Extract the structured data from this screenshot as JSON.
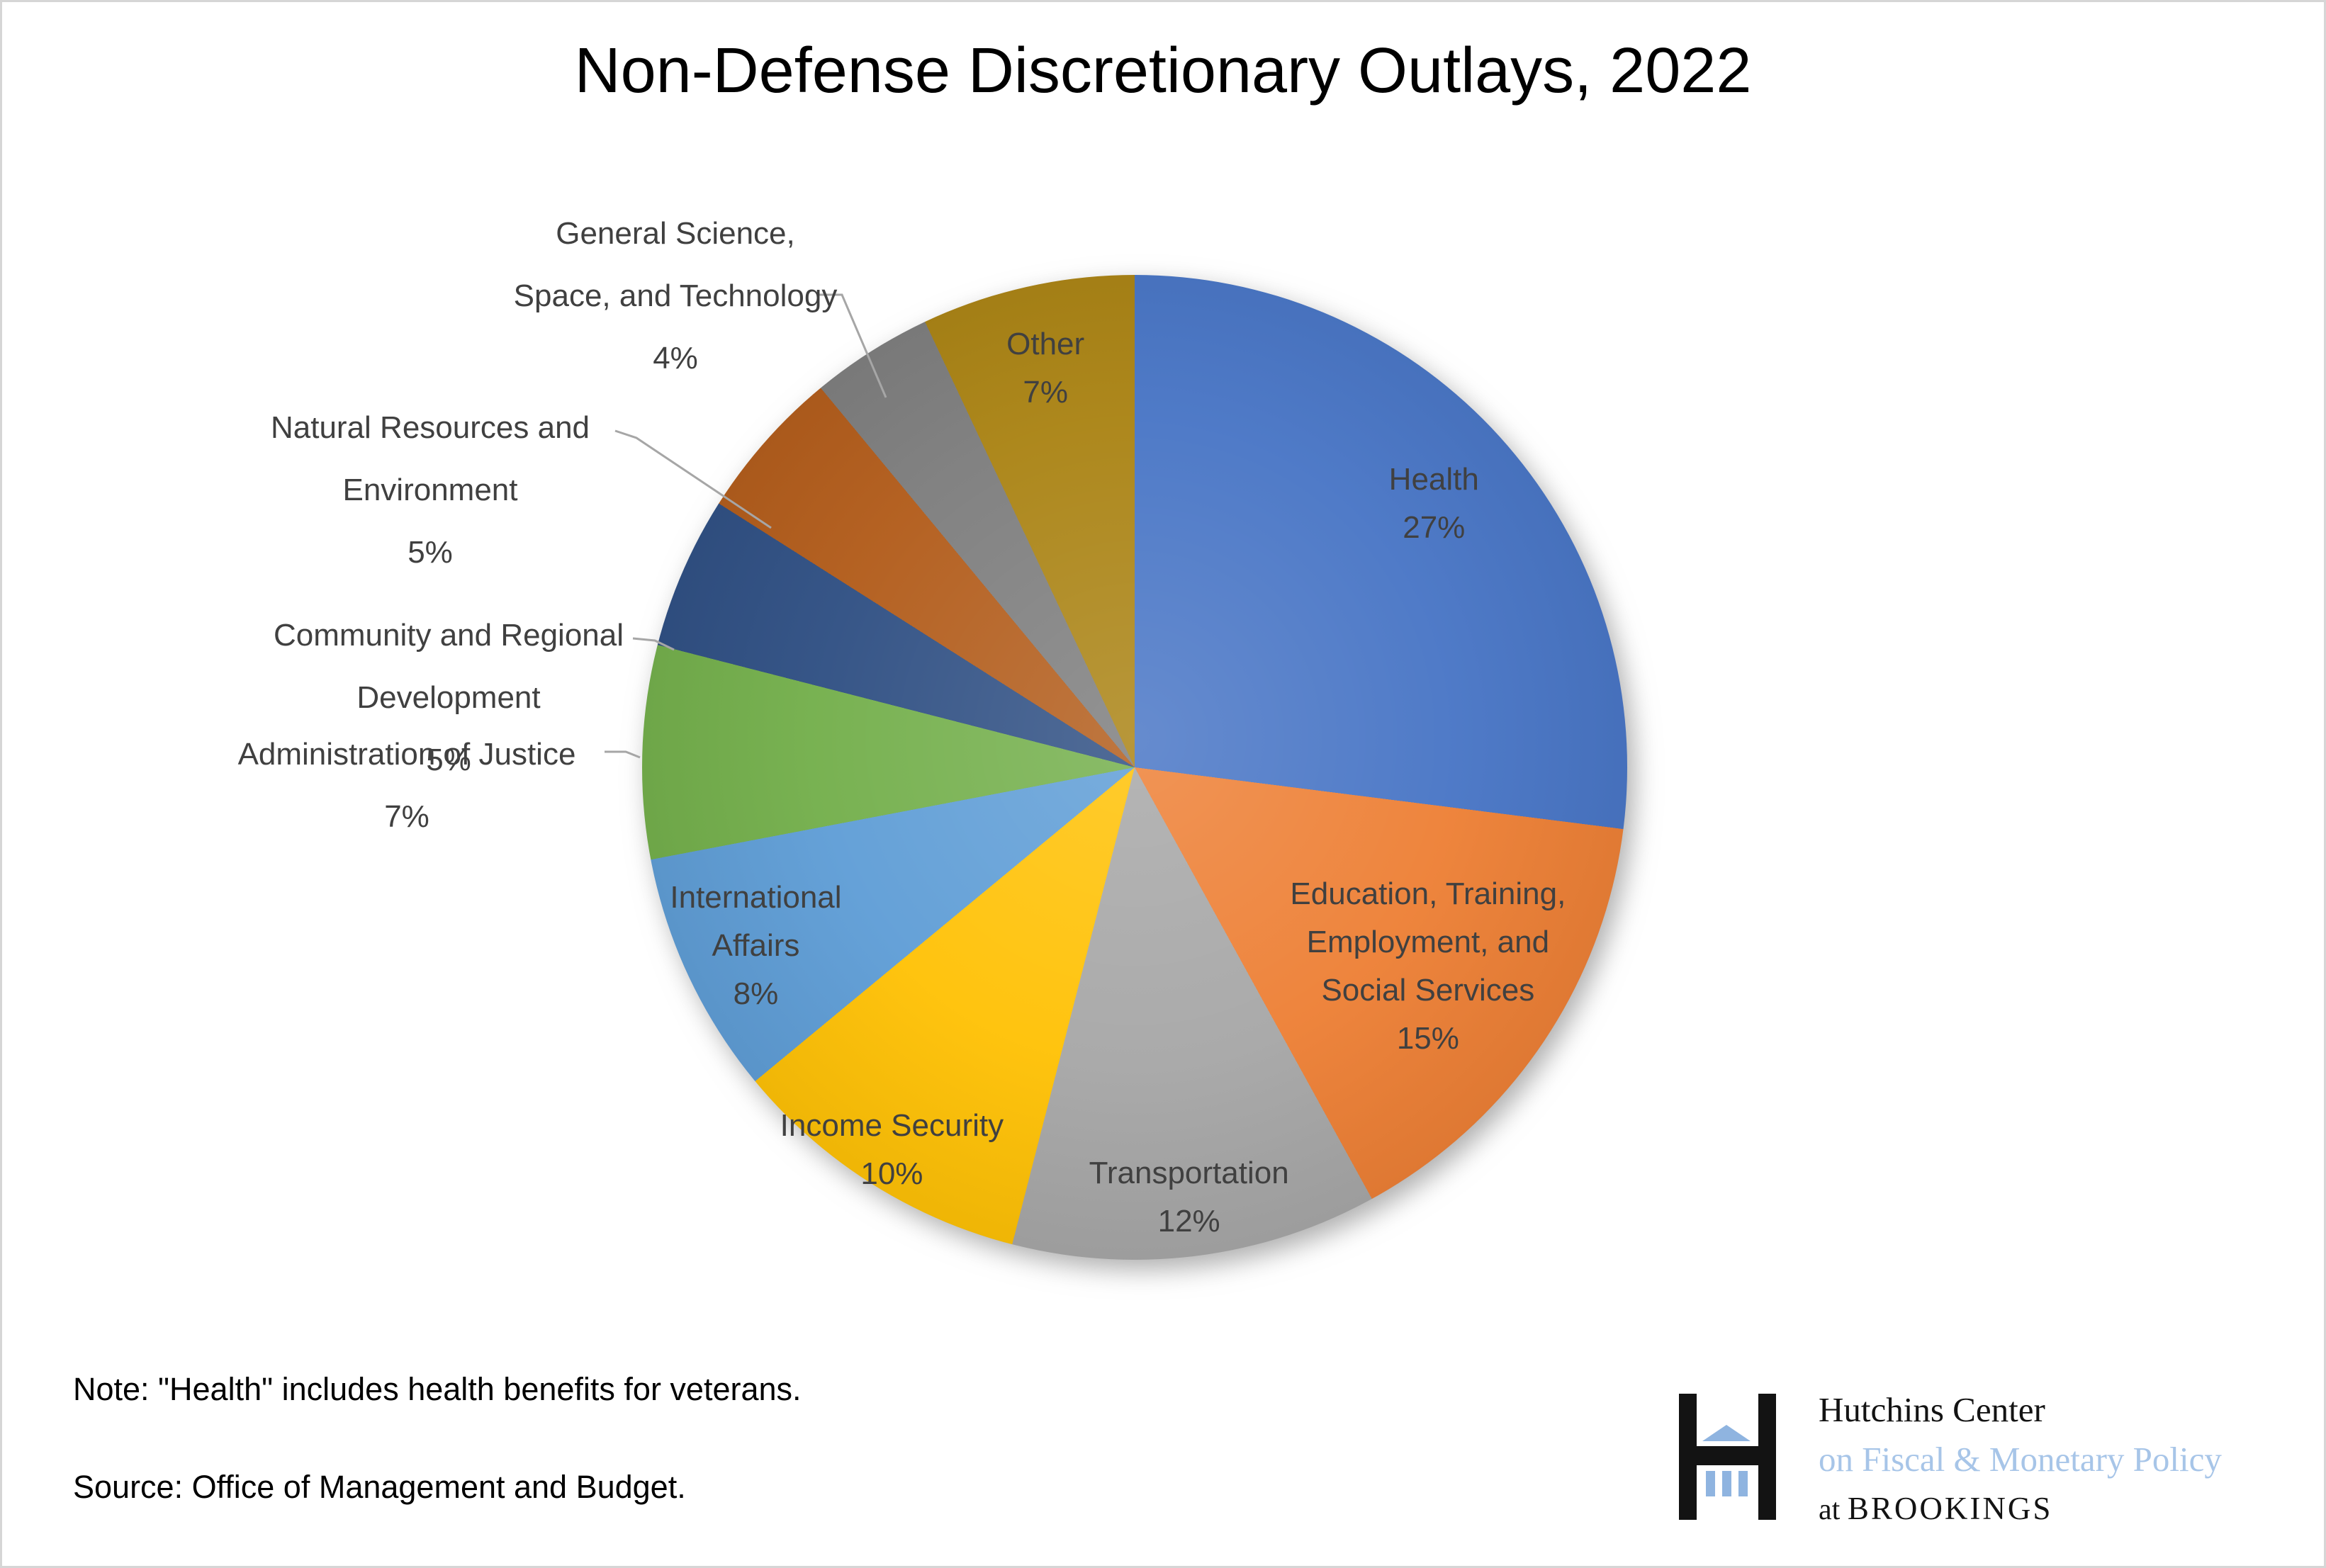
{
  "title": "Non-Defense Discretionary Outlays, 2022",
  "chart_data": {
    "type": "pie",
    "title": "Non-Defense Discretionary Outlays, 2022",
    "start_angle_deg": 0,
    "direction": "clockwise",
    "legend": "none",
    "label_color": "#404040",
    "leader_line_color": "#A6A6A6",
    "slices": [
      {
        "id": "health",
        "label": "Health",
        "lines": [
          "Health"
        ],
        "pct": "27%",
        "value": 27,
        "color": "#4472C4"
      },
      {
        "id": "education",
        "label": "Education, Training, Employment, and Social Services",
        "lines": [
          "Education, Training,",
          "Employment, and",
          "Social Services"
        ],
        "pct": "15%",
        "value": 15,
        "color": "#ED7D31"
      },
      {
        "id": "transportation",
        "label": "Transportation",
        "lines": [
          "Transportation"
        ],
        "pct": "12%",
        "value": 12,
        "color": "#A5A5A5"
      },
      {
        "id": "income",
        "label": "Income Security",
        "lines": [
          "Income Security"
        ],
        "pct": "10%",
        "value": 10,
        "color": "#FFC000"
      },
      {
        "id": "international",
        "label": "International Affairs",
        "lines": [
          "International",
          "Affairs"
        ],
        "pct": "8%",
        "value": 8,
        "color": "#5B9BD5"
      },
      {
        "id": "justice",
        "label": "Administration of Justice",
        "lines": [
          "Administration of Justice"
        ],
        "pct": "7%",
        "value": 7,
        "color": "#70AD47"
      },
      {
        "id": "community",
        "label": "Community and Regional Development",
        "lines": [
          "Community and Regional",
          "Development"
        ],
        "pct": "5%",
        "value": 5,
        "color": "#2A4B80"
      },
      {
        "id": "natural",
        "label": "Natural Resources and Environment",
        "lines": [
          "Natural Resources and",
          "Environment"
        ],
        "pct": "5%",
        "value": 5,
        "color": "#B05815"
      },
      {
        "id": "genscience",
        "label": "General Science, Space, and Technology",
        "lines": [
          "General Science,",
          "Space, and Technology"
        ],
        "pct": "4%",
        "value": 4,
        "color": "#7A7A7A"
      },
      {
        "id": "other",
        "label": "Other",
        "lines": [
          "Other"
        ],
        "pct": "7%",
        "value": 7,
        "color": "#A8800E"
      }
    ]
  },
  "notes": {
    "note": "Note: \"Health\" includes health benefits for veterans.",
    "source": "Source: Office of Management and Budget."
  },
  "logo": {
    "line1": "Hutchins Center",
    "line2": "on Fiscal & Monetary Policy",
    "line3_prefix": "at ",
    "line3_name": "BROOKINGS",
    "black": "#131313",
    "light_blue": "#A7C5E8",
    "icon_blue": "#8FB4E0"
  }
}
